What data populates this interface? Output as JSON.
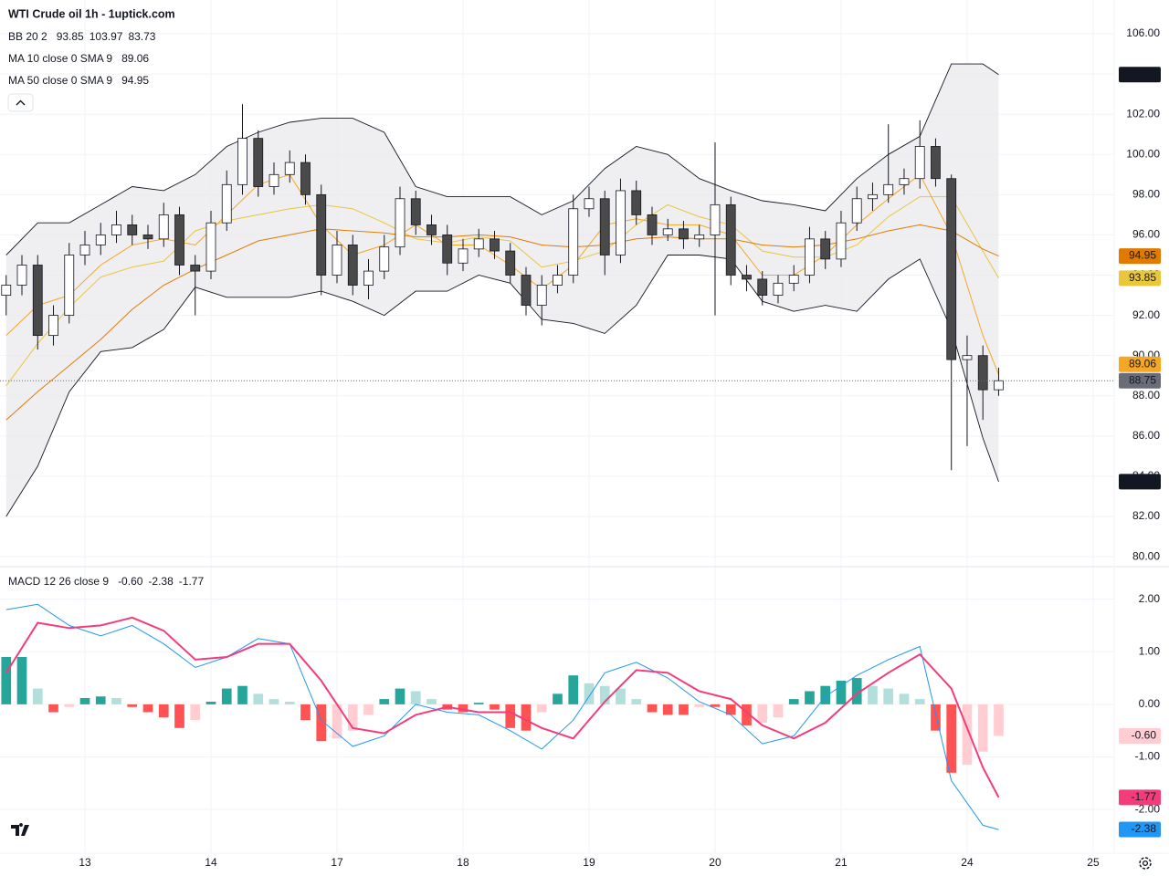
{
  "chart_data": [
    {
      "type": "candlestick",
      "title": "WTI Crude oil 1h - 1uptick.com",
      "x": [
        -0.625,
        -0.5,
        -0.375,
        -0.25,
        -0.125,
        0,
        0.125,
        0.25,
        0.375,
        0.5,
        0.625,
        0.75,
        0.875,
        1,
        1.125,
        1.25,
        1.375,
        1.5,
        1.625,
        1.75,
        1.875,
        2,
        2.125,
        2.25,
        2.375,
        2.5,
        2.625,
        2.75,
        2.875,
        3,
        3.125,
        3.25,
        3.375,
        3.5,
        3.625,
        3.75,
        3.875,
        4,
        4.125,
        4.25,
        4.375,
        4.5,
        4.625,
        4.75,
        4.875,
        5,
        5.125,
        5.25,
        5.375,
        5.5,
        5.625,
        5.75,
        5.875,
        6,
        6.125,
        6.25,
        6.375,
        6.5,
        6.625,
        6.75,
        6.875,
        7,
        7.125,
        7.25
      ],
      "open": [
        93.0,
        93.5,
        94.5,
        91.0,
        92.0,
        95.0,
        95.5,
        96.0,
        96.5,
        96.0,
        95.8,
        97.0,
        94.5,
        94.2,
        96.6,
        98.5,
        100.8,
        98.4,
        99.0,
        99.6,
        98.0,
        94.0,
        95.5,
        93.5,
        94.2,
        95.4,
        97.8,
        96.5,
        96.0,
        94.6,
        95.3,
        95.8,
        95.2,
        94.0,
        92.5,
        93.5,
        94.0,
        97.3,
        97.8,
        95.0,
        98.2,
        97.0,
        96.0,
        96.3,
        95.8,
        96.0,
        97.5,
        94.0,
        93.8,
        93.0,
        93.6,
        94.0,
        95.8,
        94.8,
        96.6,
        97.8,
        98.0,
        98.5,
        98.8,
        100.4,
        98.8,
        89.8,
        90.0,
        88.3
      ],
      "high": [
        94.0,
        95.0,
        95.0,
        92.5,
        95.6,
        96.2,
        96.6,
        97.2,
        97.0,
        96.5,
        97.6,
        97.4,
        95.0,
        97.2,
        99.2,
        102.5,
        101.2,
        99.6,
        100.2,
        100.0,
        98.5,
        96.2,
        96.0,
        94.8,
        96.0,
        98.4,
        98.2,
        97.0,
        96.5,
        95.8,
        96.3,
        96.2,
        95.6,
        94.4,
        94.0,
        94.5,
        98.0,
        98.4,
        98.2,
        98.8,
        98.7,
        97.4,
        96.8,
        96.7,
        96.5,
        100.6,
        97.9,
        94.5,
        94.2,
        94.0,
        94.5,
        96.4,
        96.2,
        97.2,
        98.4,
        98.6,
        101.5,
        99.3,
        101.7,
        100.8,
        99.0,
        91.0,
        90.5,
        89.4
      ],
      "low": [
        92.0,
        93.0,
        90.3,
        90.5,
        91.6,
        94.5,
        95.0,
        95.6,
        95.5,
        95.3,
        95.4,
        94.0,
        92.0,
        93.8,
        96.2,
        98.0,
        97.9,
        98.0,
        98.6,
        97.5,
        93.0,
        93.6,
        93.0,
        92.8,
        93.8,
        95.0,
        96.0,
        95.5,
        94.0,
        94.2,
        94.9,
        94.8,
        93.6,
        92.0,
        91.5,
        93.1,
        93.6,
        96.9,
        94.0,
        94.6,
        96.5,
        95.5,
        95.7,
        95.3,
        95.4,
        92.0,
        93.5,
        93.2,
        92.5,
        92.6,
        93.2,
        93.6,
        94.3,
        94.4,
        96.2,
        97.2,
        97.6,
        98.0,
        98.3,
        98.4,
        84.3,
        85.5,
        86.8,
        88.0
      ],
      "close": [
        93.5,
        94.5,
        91.0,
        92.0,
        95.0,
        95.5,
        96.0,
        96.5,
        96.0,
        95.8,
        97.0,
        94.5,
        94.2,
        96.6,
        98.5,
        100.8,
        98.4,
        99.0,
        99.6,
        98.0,
        94.0,
        95.5,
        93.5,
        94.2,
        95.4,
        97.8,
        96.5,
        96.0,
        94.6,
        95.3,
        95.8,
        95.2,
        94.0,
        92.5,
        93.5,
        94.0,
        97.3,
        97.8,
        95.0,
        98.2,
        97.0,
        96.0,
        96.3,
        95.8,
        96.0,
        97.5,
        94.0,
        93.8,
        93.0,
        93.6,
        94.0,
        95.8,
        94.8,
        96.6,
        97.8,
        98.0,
        98.5,
        98.8,
        100.4,
        98.8,
        89.8,
        90.0,
        88.3,
        88.75
      ],
      "up_color": "#ffffff",
      "down_color": "#4a4a4a",
      "wick_color": "#131722",
      "last_price_color": "#6a6d78",
      "band_fill": "#e9eaec",
      "line_x": [
        -0.625,
        -0.375,
        -0.125,
        0.125,
        0.375,
        0.625,
        0.875,
        1.125,
        1.375,
        1.625,
        1.875,
        2.125,
        2.375,
        2.625,
        2.875,
        3.125,
        3.375,
        3.625,
        3.875,
        4.125,
        4.375,
        4.625,
        4.875,
        5.125,
        5.375,
        5.625,
        5.875,
        6.125,
        6.375,
        6.625,
        6.875,
        7.125,
        7.25
      ],
      "indicators": [
        {
          "name": "BB 20 2",
          "lines": [
            {
              "color": "#e9c63a",
              "values": [
                88.5,
                90.6,
                92.4,
                93.9,
                94.4,
                94.7,
                96.2,
                96.7,
                97.0,
                97.3,
                97.5,
                97.3,
                96.6,
                95.8,
                95.6,
                95.9,
                95.7,
                94.4,
                94.7,
                95.2,
                96.5,
                97.5,
                96.9,
                96.5,
                95.2,
                94.9,
                94.9,
                95.5,
                96.9,
                97.9,
                97.9,
                95.2,
                93.85
              ]
            },
            {
              "color": "#131722",
              "values": [
                95,
                96.6,
                96.6,
                97.5,
                98.4,
                98.2,
                99,
                100.4,
                101.1,
                101.6,
                101.8,
                101.8,
                101.1,
                98.4,
                97.9,
                97.9,
                97.9,
                97,
                97.7,
                99.3,
                100.4,
                100,
                98.8,
                98.2,
                97.7,
                97.5,
                97.2,
                98.8,
                100,
                100.9,
                104.5,
                104.5,
                103.97
              ]
            },
            {
              "color": "#131722",
              "values": [
                82,
                84.5,
                88.2,
                90.2,
                90.4,
                91.3,
                93.4,
                92.9,
                92.9,
                92.9,
                93.2,
                92.7,
                92,
                93.2,
                93.2,
                94,
                93.6,
                91.8,
                91.6,
                91.1,
                92.5,
                95,
                95,
                94.8,
                92.7,
                92.2,
                92.5,
                92.2,
                93.8,
                94.8,
                91.3,
                85.9,
                83.73
              ]
            }
          ]
        },
        {
          "name": "MA 10 close 0 SMA 9",
          "lines": [
            {
              "color": "#f5a623",
              "values": [
                91,
                92.5,
                93,
                94.5,
                95.5,
                95.8,
                95.5,
                97,
                98.5,
                99,
                96.5,
                95,
                95.5,
                96.5,
                95.5,
                95.5,
                94.5,
                93.3,
                94.5,
                96.5,
                96.8,
                96.5,
                96.5,
                96,
                94,
                94,
                95,
                96.5,
                97.8,
                99,
                96,
                91,
                89.06
              ]
            }
          ]
        },
        {
          "name": "MA 50 close 0 SMA 9",
          "lines": [
            {
              "color": "#e07b00",
              "values": [
                86.8,
                88.2,
                89.5,
                90.8,
                92.3,
                93.5,
                94.3,
                95.0,
                95.7,
                96.0,
                96.3,
                96.2,
                96.1,
                95.9,
                95.9,
                96.0,
                95.9,
                95.5,
                95.4,
                95.5,
                95.8,
                95.9,
                95.8,
                95.8,
                95.5,
                95.4,
                95.5,
                95.8,
                96.2,
                96.5,
                96.2,
                95.3,
                94.95
              ]
            }
          ]
        }
      ],
      "xlim": [
        -0.674,
        8.167
      ],
      "xticks": [
        {
          "value": 0,
          "label": "13"
        },
        {
          "value": 1,
          "label": "14"
        },
        {
          "value": 2,
          "label": "17"
        },
        {
          "value": 3,
          "label": "18"
        },
        {
          "value": 4,
          "label": "19"
        },
        {
          "value": 5,
          "label": "20"
        },
        {
          "value": 6,
          "label": "21"
        },
        {
          "value": 7,
          "label": "24"
        },
        {
          "value": 8,
          "label": "25"
        }
      ],
      "ylim": [
        79.55,
        107.68
      ],
      "yticks": [
        {
          "value": 80,
          "label": "80.00"
        },
        {
          "value": 82,
          "label": "82.00"
        },
        {
          "value": 84,
          "label": "84.00"
        },
        {
          "value": 86,
          "label": "86.00"
        },
        {
          "value": 88,
          "label": "88.00"
        },
        {
          "value": 90,
          "label": "90.00"
        },
        {
          "value": 92,
          "label": "92.00"
        },
        {
          "value": 94,
          "label": "94.00"
        },
        {
          "value": 96,
          "label": "96.00"
        },
        {
          "value": 98,
          "label": "98.00"
        },
        {
          "value": 100,
          "label": "100.00"
        },
        {
          "value": 102,
          "label": "102.00"
        },
        {
          "value": 104,
          "label": "104.00"
        },
        {
          "value": 106,
          "label": "106.00"
        }
      ],
      "grid": true
    },
    {
      "type": "macd",
      "title": "MACD 12 26 close 9",
      "histogram": {
        "colors": [
          "#26a69a",
          "#b2dfdb",
          "#ffcdd2",
          "#ff5252"
        ],
        "last_label": "-0.60",
        "values": [
          0.9,
          0.9,
          0.3,
          -0.15,
          -0.05,
          0.12,
          0.15,
          0.12,
          -0.05,
          -0.15,
          -0.25,
          -0.45,
          -0.3,
          0.05,
          0.3,
          0.35,
          0.2,
          0.1,
          0.05,
          -0.3,
          -0.7,
          -0.65,
          -0.5,
          -0.2,
          0.1,
          0.3,
          0.25,
          0.1,
          -0.1,
          -0.15,
          0.03,
          -0.1,
          -0.45,
          -0.5,
          -0.15,
          0.2,
          0.55,
          0.4,
          0.35,
          0.3,
          0.1,
          -0.15,
          -0.2,
          -0.2,
          -0.05,
          -0.05,
          -0.2,
          -0.4,
          -0.35,
          -0.25,
          0.1,
          0.25,
          0.35,
          0.45,
          0.5,
          0.35,
          0.3,
          0.2,
          0.1,
          -0.5,
          -1.3,
          -1.15,
          -0.9,
          -0.6
        ]
      },
      "macd": {
        "color": "#2196f3",
        "values": [
          1.8,
          1.9,
          1.5,
          1.3,
          1.5,
          1.15,
          0.7,
          0.9,
          1.25,
          1.15,
          -0.3,
          -0.8,
          -0.6,
          0,
          -0.15,
          -0.2,
          -0.5,
          -0.85,
          -0.3,
          0.6,
          0.8,
          0.5,
          0.05,
          -0.2,
          -0.75,
          -0.6,
          0.15,
          0.55,
          0.85,
          1.1,
          -1.45,
          -2.3,
          -2.38
        ]
      },
      "signal": {
        "color": "#f23d7a",
        "values": [
          0.6,
          1.55,
          1.45,
          1.5,
          1.65,
          1.4,
          0.85,
          0.9,
          1.15,
          1.15,
          0.45,
          -0.45,
          -0.55,
          -0.2,
          -0.05,
          -0.15,
          -0.15,
          -0.45,
          -0.65,
          0.05,
          0.65,
          0.6,
          0.25,
          0.1,
          -0.4,
          -0.65,
          -0.35,
          0.2,
          0.6,
          0.95,
          0.3,
          -1.2,
          -1.77
        ]
      },
      "ylim": [
        -2.83,
        2.6
      ],
      "yticks": [
        {
          "value": -2,
          "label": "-2.00"
        },
        {
          "value": -1,
          "label": "-1.00"
        },
        {
          "value": 0,
          "label": "0.00"
        },
        {
          "value": 1,
          "label": "1.00"
        },
        {
          "value": 2,
          "label": "2.00"
        }
      ],
      "grid": true
    }
  ]
}
